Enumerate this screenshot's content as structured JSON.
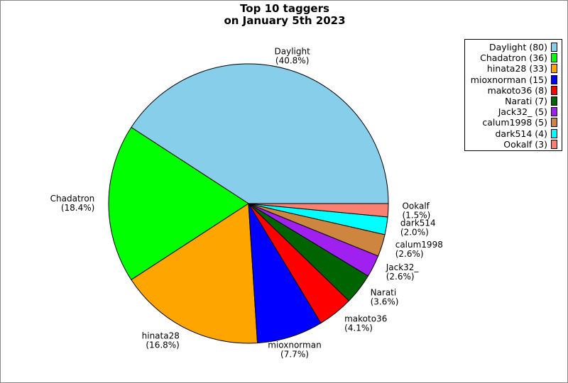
{
  "chart_data": {
    "type": "pie",
    "title_lines": [
      "Top 10 taggers",
      "on January 5th 2023"
    ],
    "start_angle_deg": 0,
    "direction": "counterclockwise",
    "legend_placement": "top-right",
    "slices": [
      {
        "name": "Daylight",
        "value": 80,
        "percent": "40.8%",
        "color": "#87CEEB",
        "legend": "Daylight (80)"
      },
      {
        "name": "Chadatron",
        "value": 36,
        "percent": "18.4%",
        "color": "#00FF00",
        "legend": "Chadatron (36)"
      },
      {
        "name": "hinata28",
        "value": 33,
        "percent": "16.8%",
        "color": "#FFA500",
        "legend": "hinata28 (33)"
      },
      {
        "name": "mioxnorman",
        "value": 15,
        "percent": "7.7%",
        "color": "#0000FF",
        "legend": "mioxnorman (15)"
      },
      {
        "name": "makoto36",
        "value": 8,
        "percent": "4.1%",
        "color": "#FF0000",
        "legend": "makoto36 (8)"
      },
      {
        "name": "Narati",
        "value": 7,
        "percent": "3.6%",
        "color": "#006400",
        "legend": "Narati (7)"
      },
      {
        "name": "Jack32_",
        "value": 5,
        "percent": "2.6%",
        "color": "#A020F0",
        "legend": "Jack32_ (5)"
      },
      {
        "name": "calum1998",
        "value": 5,
        "percent": "2.6%",
        "color": "#CD853F",
        "legend": "calum1998 (5)"
      },
      {
        "name": "dark514",
        "value": 4,
        "percent": "2.0%",
        "color": "#00FFFF",
        "legend": "dark514 (4)"
      },
      {
        "name": "Ookalf",
        "value": 3,
        "percent": "1.5%",
        "color": "#FA8072",
        "legend": "Ookalf (3)"
      }
    ]
  }
}
